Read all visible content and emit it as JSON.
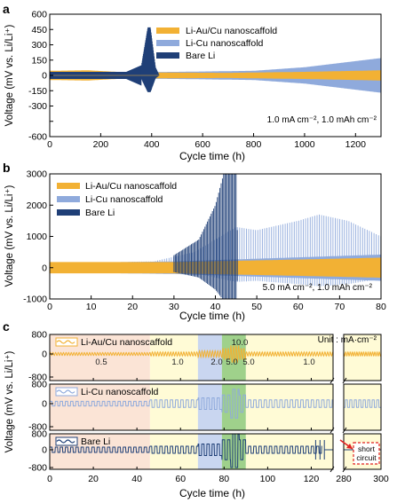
{
  "colors": {
    "gold": "#F2B134",
    "light_blue": "#8FAADC",
    "dark_blue": "#1F3F77",
    "bg_peach": "#FBE4D6",
    "bg_yellow": "#FFFBD6",
    "bg_blue": "#C9D6F0",
    "bg_green": "#9FD18B",
    "short_red": "#E02020"
  },
  "chart_data": [
    {
      "panel_label": "a",
      "type": "line",
      "xlabel": "Cycle time (h)",
      "ylabel": "Voltage (mV vs. Li/Li⁺)",
      "xlim": [
        0,
        1300
      ],
      "ylim": [
        -600,
        600
      ],
      "xticks": [
        0,
        200,
        400,
        600,
        800,
        1000,
        1200
      ],
      "yticks": [
        -600,
        -450,
        -300,
        -150,
        0,
        150,
        300,
        450,
        600
      ],
      "ytick_labels": [
        "-600",
        "",
        "-300",
        "-150",
        "0",
        "150",
        "300",
        "450",
        "600"
      ],
      "annotation": "1.0 mA cm⁻², 1.0 mAh cm⁻²",
      "legend_position": "top-center",
      "series": [
        {
          "name": "Li-Au/Cu nanoscaffold",
          "color_key": "gold",
          "amplitude_mV": [
            [
              0,
              45
            ],
            [
              150,
              50
            ],
            [
              300,
              30
            ],
            [
              700,
              25
            ],
            [
              1000,
              35
            ],
            [
              1300,
              50
            ]
          ]
        },
        {
          "name": "Li-Cu nanoscaffold",
          "color_key": "light_blue",
          "amplitude_mV": [
            [
              0,
              35
            ],
            [
              200,
              30
            ],
            [
              500,
              35
            ],
            [
              800,
              45
            ],
            [
              1000,
              80
            ],
            [
              1300,
              170
            ]
          ]
        },
        {
          "name": "Bare Li",
          "color_key": "dark_blue",
          "amplitude_mV": [
            [
              0,
              35
            ],
            [
              300,
              35
            ],
            [
              360,
              100
            ],
            [
              385,
              470
            ],
            [
              395,
              470
            ],
            [
              415,
              80
            ],
            [
              430,
              0
            ]
          ]
        }
      ]
    },
    {
      "panel_label": "b",
      "type": "line",
      "xlabel": "Cycle time (h)",
      "ylabel": "Voltage (mV vs. Li/Li⁺)",
      "xlim": [
        0,
        80
      ],
      "ylim": [
        -1000,
        3000
      ],
      "xticks": [
        0,
        10,
        20,
        30,
        40,
        50,
        60,
        70,
        80
      ],
      "yticks": [
        -1000,
        0,
        1000,
        2000,
        3000
      ],
      "annotation": "5.0 mA cm⁻², 1.0 mAh cm⁻²",
      "legend_position": "top-left",
      "series": [
        {
          "name": "Li-Au/Cu nanoscaffold",
          "color_key": "gold",
          "amplitude_mV": [
            [
              0,
              180
            ],
            [
              30,
              180
            ],
            [
              60,
              260
            ],
            [
              80,
              320
            ]
          ]
        },
        {
          "name": "Li-Cu nanoscaffold",
          "color_key": "light_blue",
          "amplitude_mV": [
            [
              0,
              150
            ],
            [
              25,
              200
            ],
            [
              35,
              500
            ],
            [
              45,
              1300
            ],
            [
              50,
              1200
            ],
            [
              60,
              1500
            ],
            [
              65,
              1700
            ],
            [
              72,
              1500
            ],
            [
              80,
              1000
            ]
          ]
        },
        {
          "name": "Bare Li",
          "color_key": "dark_blue",
          "amplitude_mV": [
            [
              0,
              120
            ],
            [
              20,
              200
            ],
            [
              30,
              400
            ],
            [
              36,
              900
            ],
            [
              40,
              2000
            ],
            [
              42,
              3000
            ],
            [
              45,
              3000
            ],
            [
              45.5,
              0
            ]
          ]
        }
      ]
    },
    {
      "panel_label": "c",
      "type": "line",
      "xlabel": "Cycle time (h)",
      "ylabel": "Voltage (mV vs. Li/Li⁺)",
      "xlim": [
        0,
        300
      ],
      "axis_break": [
        130,
        280
      ],
      "xticks": [
        0,
        20,
        40,
        60,
        80,
        100,
        120,
        280,
        300
      ],
      "yticks": [
        -800,
        0,
        800
      ],
      "unit_label": "Unit : mA·cm⁻²",
      "current_density_regions": [
        {
          "from": 0,
          "to": 46,
          "value": "0.5"
        },
        {
          "from": 46,
          "to": 68,
          "value": "1.0"
        },
        {
          "from": 68,
          "to": 79,
          "value": "2.0"
        },
        {
          "from": 79,
          "to": 90,
          "value": "5.0 / 10.0 / 5.0"
        },
        {
          "from": 90,
          "to": 300,
          "value": "1.0"
        }
      ],
      "density_labels": [
        "0.5",
        "1.0",
        "2.0",
        "10.0",
        "5.0",
        "5.0",
        "1.0"
      ],
      "short_circuit_label": [
        "short",
        "circuit"
      ],
      "series": [
        {
          "name": "Li-Au/Cu nanoscaffold",
          "color_key": "gold",
          "amplitude_mV": {
            "0.5": 50,
            "1.0": 70,
            "2.0": 110,
            "5.0": 200,
            "10.0": 300
          }
        },
        {
          "name": "Li-Cu nanoscaffold",
          "color_key": "light_blue",
          "amplitude_mV": {
            "0.5": 80,
            "1.0": 130,
            "2.0": 200,
            "5.0": 300,
            "10.0": 500
          }
        },
        {
          "name": "Bare Li",
          "color_key": "dark_blue",
          "amplitude_mV": {
            "0.5": 120,
            "1.0": 160,
            "2.0": 260,
            "5.0": 450,
            "10.0": 800
          },
          "short_circuit_at_h": 125
        }
      ]
    }
  ]
}
